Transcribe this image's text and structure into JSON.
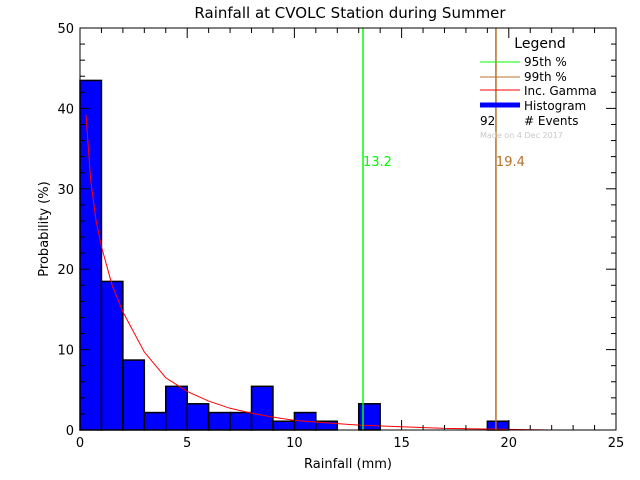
{
  "chart_data": {
    "type": "bar",
    "title": "Rainfall at CVOLC Station during Summer",
    "xlabel": "Rainfall (mm)",
    "ylabel": "Probability (%)",
    "xlim": [
      0,
      25
    ],
    "ylim": [
      0,
      50
    ],
    "xticks": [
      "0",
      "5",
      "10",
      "15",
      "20",
      "25"
    ],
    "yticks": [
      "0",
      "10",
      "20",
      "30",
      "40",
      "50"
    ],
    "grid": false,
    "histogram": {
      "name": "Histogram",
      "bin_width": 1,
      "bin_starts": [
        0,
        1,
        2,
        3,
        4,
        5,
        6,
        7,
        8,
        9,
        10,
        11,
        12,
        13,
        14,
        15,
        16,
        17,
        18,
        19,
        20,
        21,
        22,
        23,
        24
      ],
      "values": [
        43.48,
        18.48,
        8.7,
        2.17,
        5.43,
        3.26,
        2.17,
        2.17,
        5.43,
        1.09,
        2.17,
        1.09,
        0,
        3.26,
        0,
        0,
        0,
        0,
        0,
        1.09,
        0,
        0,
        0,
        0,
        0
      ],
      "color": "#0000ff"
    },
    "gamma_curve": {
      "name": "Inc. Gamma",
      "color": "#ff0000",
      "x": [
        0.28,
        0.5,
        0.75,
        1,
        1.5,
        2,
        3,
        4,
        5,
        6,
        7,
        8,
        9,
        10,
        12,
        13,
        15,
        17,
        20,
        22
      ],
      "y": [
        39.2,
        31,
        26,
        22.8,
        18,
        14.7,
        9.7,
        6.5,
        4.8,
        3.6,
        2.7,
        2.1,
        1.6,
        1.2,
        0.8,
        0.6,
        0.4,
        0.2,
        0.08,
        0
      ]
    },
    "percentiles": [
      {
        "name": "95th %",
        "value": 13.2,
        "label": "13.2",
        "color": "#00ff00"
      },
      {
        "name": "99th %",
        "value": 19.4,
        "label": "19.4",
        "color": "#b8702a"
      }
    ],
    "legend": {
      "title": "Legend",
      "placement": "top-right",
      "entries": [
        "95th %",
        "99th %",
        "Inc. Gamma",
        "Histogram"
      ],
      "events_count": "92",
      "events_label": "# Events",
      "note": "Made on 4 Dec 2017"
    }
  }
}
